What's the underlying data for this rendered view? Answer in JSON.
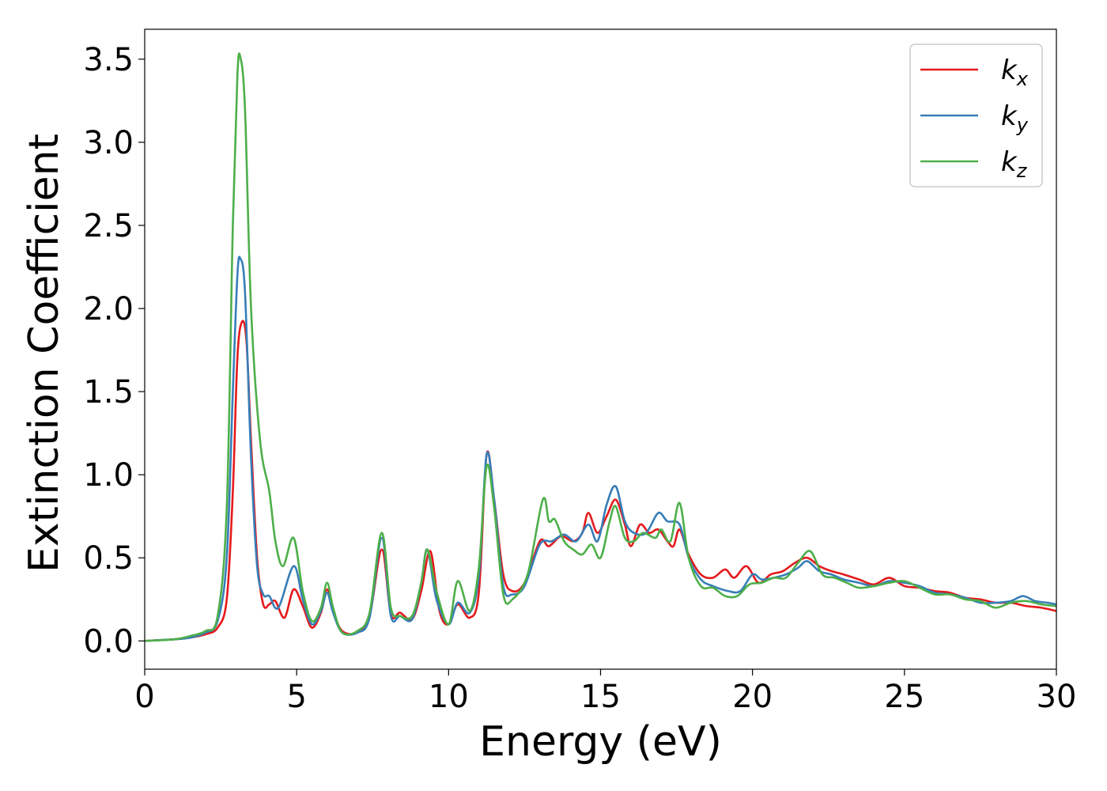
{
  "chart_data": {
    "type": "line",
    "title": "",
    "xlabel": "Energy (eV)",
    "ylabel": "Extinction Coefficient",
    "xlim": [
      0,
      30
    ],
    "ylim": [
      -0.17,
      3.68
    ],
    "xticks": [
      0,
      5,
      10,
      15,
      20,
      25,
      30
    ],
    "xtick_labels": [
      "0",
      "5",
      "10",
      "15",
      "20",
      "25",
      "30"
    ],
    "yticks": [
      0.0,
      0.5,
      1.0,
      1.5,
      2.0,
      2.5,
      3.0,
      3.5
    ],
    "ytick_labels": [
      "0.0",
      "0.5",
      "1.0",
      "1.5",
      "2.0",
      "2.5",
      "3.0",
      "3.5"
    ],
    "grid": false,
    "legend_position": "top-right",
    "series": [
      {
        "name": "k_x",
        "label_base": "k",
        "label_sub": "x",
        "color": "#e41a1c",
        "points": [
          [
            0,
            0
          ],
          [
            1,
            0.01
          ],
          [
            1.5,
            0.02
          ],
          [
            2,
            0.04
          ],
          [
            2.4,
            0.08
          ],
          [
            2.7,
            0.25
          ],
          [
            2.9,
            0.9
          ],
          [
            3.05,
            1.7
          ],
          [
            3.2,
            1.92
          ],
          [
            3.35,
            1.8
          ],
          [
            3.5,
            1.2
          ],
          [
            3.7,
            0.5
          ],
          [
            3.9,
            0.22
          ],
          [
            4.1,
            0.22
          ],
          [
            4.3,
            0.24
          ],
          [
            4.6,
            0.14
          ],
          [
            4.9,
            0.31
          ],
          [
            5.2,
            0.21
          ],
          [
            5.5,
            0.08
          ],
          [
            5.8,
            0.17
          ],
          [
            6.0,
            0.31
          ],
          [
            6.2,
            0.18
          ],
          [
            6.5,
            0.06
          ],
          [
            7.0,
            0.05
          ],
          [
            7.4,
            0.15
          ],
          [
            7.8,
            0.55
          ],
          [
            8.1,
            0.16
          ],
          [
            8.4,
            0.17
          ],
          [
            8.8,
            0.13
          ],
          [
            9.1,
            0.3
          ],
          [
            9.4,
            0.54
          ],
          [
            9.7,
            0.18
          ],
          [
            10.0,
            0.1
          ],
          [
            10.3,
            0.22
          ],
          [
            10.7,
            0.14
          ],
          [
            11.0,
            0.3
          ],
          [
            11.25,
            1.12
          ],
          [
            11.5,
            0.85
          ],
          [
            11.8,
            0.4
          ],
          [
            12.1,
            0.3
          ],
          [
            12.5,
            0.35
          ],
          [
            13.0,
            0.6
          ],
          [
            13.3,
            0.57
          ],
          [
            13.7,
            0.63
          ],
          [
            14.1,
            0.6
          ],
          [
            14.4,
            0.65
          ],
          [
            14.6,
            0.77
          ],
          [
            14.9,
            0.65
          ],
          [
            15.2,
            0.75
          ],
          [
            15.5,
            0.85
          ],
          [
            15.8,
            0.7
          ],
          [
            16.0,
            0.57
          ],
          [
            16.3,
            0.7
          ],
          [
            16.6,
            0.65
          ],
          [
            16.9,
            0.67
          ],
          [
            17.2,
            0.6
          ],
          [
            17.4,
            0.57
          ],
          [
            17.6,
            0.67
          ],
          [
            17.9,
            0.52
          ],
          [
            18.3,
            0.4
          ],
          [
            18.7,
            0.38
          ],
          [
            19.1,
            0.43
          ],
          [
            19.4,
            0.38
          ],
          [
            19.8,
            0.45
          ],
          [
            20.2,
            0.35
          ],
          [
            20.6,
            0.4
          ],
          [
            21.0,
            0.42
          ],
          [
            21.4,
            0.47
          ],
          [
            21.8,
            0.5
          ],
          [
            22.2,
            0.45
          ],
          [
            22.6,
            0.42
          ],
          [
            23.0,
            0.4
          ],
          [
            23.5,
            0.37
          ],
          [
            24.0,
            0.34
          ],
          [
            24.5,
            0.38
          ],
          [
            25.0,
            0.33
          ],
          [
            25.5,
            0.32
          ],
          [
            26.0,
            0.3
          ],
          [
            26.5,
            0.29
          ],
          [
            27.0,
            0.26
          ],
          [
            27.5,
            0.25
          ],
          [
            28.0,
            0.23
          ],
          [
            28.5,
            0.23
          ],
          [
            29.0,
            0.21
          ],
          [
            29.5,
            0.2
          ],
          [
            30,
            0.18
          ]
        ]
      },
      {
        "name": "k_y",
        "label_base": "k",
        "label_sub": "y",
        "color": "#377eb8",
        "points": [
          [
            0,
            0
          ],
          [
            1,
            0.01
          ],
          [
            1.5,
            0.02
          ],
          [
            2,
            0.05
          ],
          [
            2.4,
            0.12
          ],
          [
            2.7,
            0.5
          ],
          [
            2.9,
            1.5
          ],
          [
            3.05,
            2.2
          ],
          [
            3.15,
            2.3
          ],
          [
            3.3,
            2.1
          ],
          [
            3.5,
            1.1
          ],
          [
            3.7,
            0.45
          ],
          [
            3.9,
            0.28
          ],
          [
            4.1,
            0.27
          ],
          [
            4.4,
            0.2
          ],
          [
            4.9,
            0.45
          ],
          [
            5.2,
            0.25
          ],
          [
            5.5,
            0.1
          ],
          [
            5.8,
            0.18
          ],
          [
            6.0,
            0.29
          ],
          [
            6.2,
            0.17
          ],
          [
            6.5,
            0.05
          ],
          [
            7.0,
            0.05
          ],
          [
            7.4,
            0.14
          ],
          [
            7.8,
            0.62
          ],
          [
            8.1,
            0.15
          ],
          [
            8.4,
            0.15
          ],
          [
            8.8,
            0.13
          ],
          [
            9.1,
            0.35
          ],
          [
            9.3,
            0.55
          ],
          [
            9.6,
            0.25
          ],
          [
            10.0,
            0.1
          ],
          [
            10.3,
            0.23
          ],
          [
            10.7,
            0.17
          ],
          [
            11.0,
            0.4
          ],
          [
            11.25,
            1.12
          ],
          [
            11.5,
            0.85
          ],
          [
            11.8,
            0.33
          ],
          [
            12.1,
            0.28
          ],
          [
            12.5,
            0.33
          ],
          [
            13.0,
            0.58
          ],
          [
            13.4,
            0.6
          ],
          [
            13.8,
            0.64
          ],
          [
            14.2,
            0.6
          ],
          [
            14.6,
            0.7
          ],
          [
            14.9,
            0.6
          ],
          [
            15.2,
            0.82
          ],
          [
            15.5,
            0.93
          ],
          [
            15.8,
            0.72
          ],
          [
            16.1,
            0.65
          ],
          [
            16.5,
            0.65
          ],
          [
            16.9,
            0.77
          ],
          [
            17.2,
            0.72
          ],
          [
            17.6,
            0.7
          ],
          [
            17.9,
            0.5
          ],
          [
            18.3,
            0.37
          ],
          [
            18.7,
            0.33
          ],
          [
            19.2,
            0.3
          ],
          [
            19.6,
            0.3
          ],
          [
            20.0,
            0.4
          ],
          [
            20.3,
            0.37
          ],
          [
            20.7,
            0.38
          ],
          [
            21.1,
            0.4
          ],
          [
            21.5,
            0.44
          ],
          [
            21.8,
            0.48
          ],
          [
            22.2,
            0.42
          ],
          [
            22.6,
            0.4
          ],
          [
            23.0,
            0.37
          ],
          [
            23.5,
            0.35
          ],
          [
            24.0,
            0.33
          ],
          [
            24.5,
            0.36
          ],
          [
            25.0,
            0.35
          ],
          [
            25.5,
            0.33
          ],
          [
            26.0,
            0.29
          ],
          [
            26.5,
            0.28
          ],
          [
            27.0,
            0.26
          ],
          [
            27.5,
            0.23
          ],
          [
            28.0,
            0.23
          ],
          [
            28.5,
            0.24
          ],
          [
            28.9,
            0.27
          ],
          [
            29.3,
            0.24
          ],
          [
            29.7,
            0.23
          ],
          [
            30,
            0.22
          ]
        ]
      },
      {
        "name": "k_z",
        "label_base": "k",
        "label_sub": "z",
        "color": "#4daf4a",
        "points": [
          [
            0,
            0
          ],
          [
            1,
            0.01
          ],
          [
            1.5,
            0.03
          ],
          [
            2,
            0.06
          ],
          [
            2.4,
            0.15
          ],
          [
            2.7,
            0.8
          ],
          [
            2.9,
            2.5
          ],
          [
            3.05,
            3.4
          ],
          [
            3.15,
            3.51
          ],
          [
            3.3,
            3.2
          ],
          [
            3.5,
            2.0
          ],
          [
            3.8,
            1.2
          ],
          [
            4.1,
            0.9
          ],
          [
            4.3,
            0.6
          ],
          [
            4.55,
            0.45
          ],
          [
            4.9,
            0.62
          ],
          [
            5.2,
            0.3
          ],
          [
            5.5,
            0.12
          ],
          [
            5.8,
            0.2
          ],
          [
            6.0,
            0.35
          ],
          [
            6.2,
            0.2
          ],
          [
            6.5,
            0.05
          ],
          [
            7.0,
            0.06
          ],
          [
            7.4,
            0.17
          ],
          [
            7.8,
            0.65
          ],
          [
            8.1,
            0.2
          ],
          [
            8.4,
            0.15
          ],
          [
            8.8,
            0.15
          ],
          [
            9.1,
            0.35
          ],
          [
            9.3,
            0.55
          ],
          [
            9.6,
            0.3
          ],
          [
            10.0,
            0.1
          ],
          [
            10.3,
            0.36
          ],
          [
            10.7,
            0.18
          ],
          [
            11.0,
            0.45
          ],
          [
            11.25,
            1.05
          ],
          [
            11.5,
            0.8
          ],
          [
            11.8,
            0.28
          ],
          [
            12.1,
            0.25
          ],
          [
            12.6,
            0.4
          ],
          [
            13.1,
            0.85
          ],
          [
            13.3,
            0.72
          ],
          [
            13.5,
            0.73
          ],
          [
            13.8,
            0.6
          ],
          [
            14.1,
            0.55
          ],
          [
            14.4,
            0.52
          ],
          [
            14.7,
            0.58
          ],
          [
            15.0,
            0.5
          ],
          [
            15.3,
            0.72
          ],
          [
            15.5,
            0.81
          ],
          [
            15.8,
            0.62
          ],
          [
            16.1,
            0.6
          ],
          [
            16.4,
            0.65
          ],
          [
            16.8,
            0.62
          ],
          [
            17.0,
            0.67
          ],
          [
            17.3,
            0.6
          ],
          [
            17.6,
            0.83
          ],
          [
            17.9,
            0.5
          ],
          [
            18.3,
            0.33
          ],
          [
            18.7,
            0.32
          ],
          [
            19.1,
            0.27
          ],
          [
            19.5,
            0.27
          ],
          [
            19.9,
            0.34
          ],
          [
            20.3,
            0.35
          ],
          [
            20.7,
            0.38
          ],
          [
            21.1,
            0.38
          ],
          [
            21.5,
            0.47
          ],
          [
            21.9,
            0.54
          ],
          [
            22.3,
            0.4
          ],
          [
            22.7,
            0.38
          ],
          [
            23.1,
            0.35
          ],
          [
            23.5,
            0.32
          ],
          [
            24.0,
            0.33
          ],
          [
            24.5,
            0.35
          ],
          [
            25.0,
            0.36
          ],
          [
            25.5,
            0.32
          ],
          [
            26.0,
            0.28
          ],
          [
            26.5,
            0.28
          ],
          [
            27.0,
            0.25
          ],
          [
            27.5,
            0.24
          ],
          [
            28.0,
            0.2
          ],
          [
            28.5,
            0.23
          ],
          [
            29.0,
            0.24
          ],
          [
            29.5,
            0.22
          ],
          [
            30,
            0.21
          ]
        ]
      }
    ]
  }
}
